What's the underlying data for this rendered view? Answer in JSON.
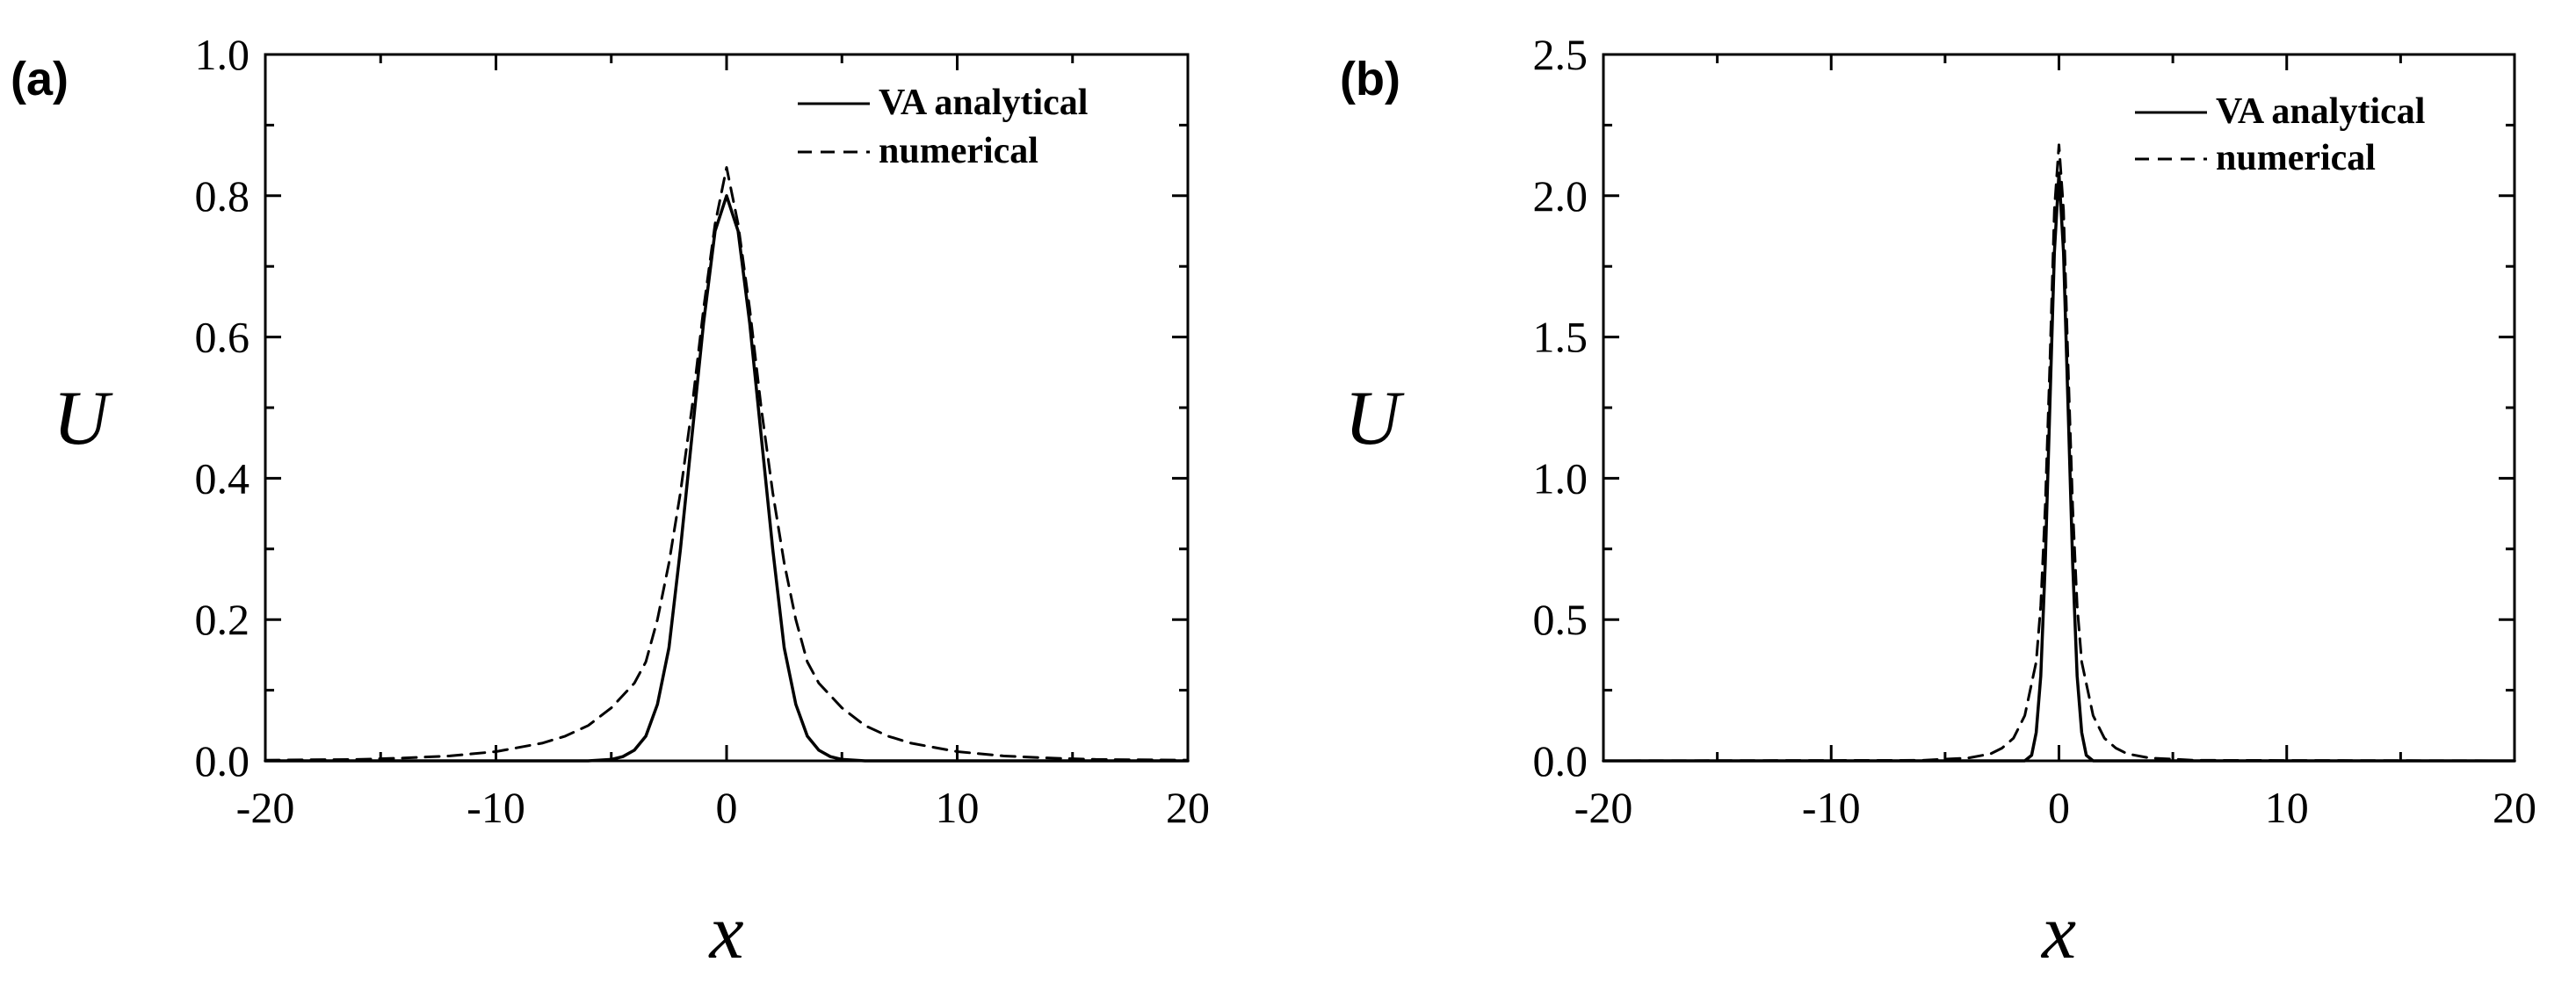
{
  "chart_data": [
    {
      "type": "line",
      "panel_label": "(a)",
      "xlabel": "x",
      "ylabel": "U",
      "xlim": [
        -20,
        20
      ],
      "ylim": [
        0,
        1.0
      ],
      "x_ticks": [
        -20,
        -10,
        0,
        10,
        20
      ],
      "x_tick_labels": [
        "-20",
        "-10",
        "0",
        "10",
        "20"
      ],
      "y_ticks": [
        0,
        0.2,
        0.4,
        0.6,
        0.8,
        1.0
      ],
      "y_tick_labels": [
        "0.0",
        "0.2",
        "0.4",
        "0.6",
        "0.8",
        "1.0"
      ],
      "grid": false,
      "legend_position": "top-right",
      "series": [
        {
          "name": "VA analytical",
          "style": "solid",
          "x": [
            -20,
            -6,
            -5,
            -4.5,
            -4,
            -3.5,
            -3,
            -2.5,
            -2,
            -1.5,
            -1,
            -0.5,
            0,
            0.5,
            1,
            1.5,
            2,
            2.5,
            3,
            3.5,
            4,
            4.5,
            5,
            6,
            20
          ],
          "y": [
            0,
            0,
            0.002,
            0.006,
            0.015,
            0.035,
            0.08,
            0.16,
            0.3,
            0.46,
            0.62,
            0.75,
            0.8,
            0.75,
            0.62,
            0.46,
            0.3,
            0.16,
            0.08,
            0.035,
            0.015,
            0.006,
            0.002,
            0,
            0
          ]
        },
        {
          "name": "numerical",
          "style": "dashed",
          "x": [
            -20,
            -16,
            -14,
            -12,
            -10,
            -8,
            -7,
            -6,
            -5,
            -4,
            -3.5,
            -3,
            -2.5,
            -2,
            -1.5,
            -1,
            -0.5,
            0,
            0.5,
            1,
            1.5,
            2,
            2.5,
            3,
            3.5,
            4,
            5,
            6,
            7,
            8,
            10,
            12,
            14,
            16,
            20
          ],
          "y": [
            0.001,
            0.002,
            0.004,
            0.007,
            0.013,
            0.025,
            0.035,
            0.05,
            0.075,
            0.11,
            0.14,
            0.2,
            0.28,
            0.38,
            0.5,
            0.64,
            0.76,
            0.84,
            0.76,
            0.64,
            0.5,
            0.38,
            0.28,
            0.2,
            0.14,
            0.11,
            0.075,
            0.05,
            0.035,
            0.025,
            0.013,
            0.007,
            0.004,
            0.002,
            0.001
          ]
        }
      ]
    },
    {
      "type": "line",
      "panel_label": "(b)",
      "xlabel": "x",
      "ylabel": "U",
      "xlim": [
        -20,
        20
      ],
      "ylim": [
        0,
        2.5
      ],
      "x_ticks": [
        -20,
        -10,
        0,
        10,
        20
      ],
      "x_tick_labels": [
        "-20",
        "-10",
        "0",
        "10",
        "20"
      ],
      "y_ticks": [
        0,
        0.5,
        1.0,
        1.5,
        2.0,
        2.5
      ],
      "y_tick_labels": [
        "0.0",
        "0.5",
        "1.0",
        "1.5",
        "2.0",
        "2.5"
      ],
      "grid": false,
      "legend_position": "top-right",
      "series": [
        {
          "name": "VA analytical",
          "style": "solid",
          "x": [
            -20,
            -1.5,
            -1.2,
            -1,
            -0.8,
            -0.6,
            -0.4,
            -0.2,
            0,
            0.2,
            0.4,
            0.6,
            0.8,
            1,
            1.2,
            1.5,
            20
          ],
          "y": [
            0,
            0,
            0.02,
            0.1,
            0.3,
            0.7,
            1.25,
            1.8,
            2.08,
            1.8,
            1.25,
            0.7,
            0.3,
            0.1,
            0.02,
            0,
            0
          ],
          "note": "solid narrow peak"
        },
        {
          "name": "numerical",
          "style": "dashed",
          "x": [
            -20,
            -6,
            -4,
            -3,
            -2.5,
            -2,
            -1.5,
            -1,
            -0.8,
            -0.6,
            -0.4,
            -0.2,
            0,
            0.2,
            0.4,
            0.6,
            0.8,
            1,
            1.5,
            2,
            2.5,
            3,
            4,
            6,
            20
          ],
          "y": [
            0,
            0.002,
            0.01,
            0.025,
            0.045,
            0.08,
            0.16,
            0.35,
            0.55,
            0.9,
            1.4,
            1.95,
            2.18,
            1.95,
            1.4,
            0.9,
            0.55,
            0.35,
            0.16,
            0.08,
            0.045,
            0.025,
            0.01,
            0.002,
            0
          ]
        }
      ]
    }
  ]
}
